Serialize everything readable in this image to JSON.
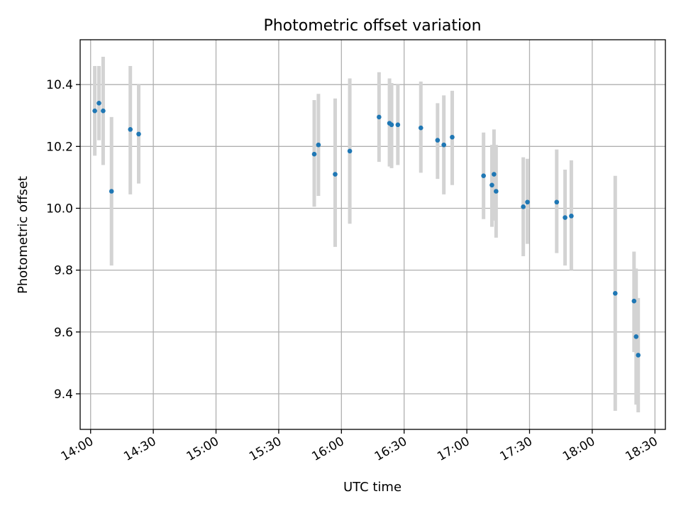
{
  "chart_data": {
    "type": "scatter",
    "title": "Photometric offset variation",
    "xlabel": "UTC time",
    "ylabel": "Photometric offset",
    "x_axis": "time",
    "xlim": [
      "13:55",
      "18:35"
    ],
    "ylim": [
      9.285,
      10.545
    ],
    "x_ticks": [
      "14:00",
      "14:30",
      "15:00",
      "15:30",
      "16:00",
      "16:30",
      "17:00",
      "17:30",
      "18:00",
      "18:30"
    ],
    "y_ticks": [
      9.4,
      9.6,
      9.8,
      10.0,
      10.2,
      10.4
    ],
    "y_tick_labels": [
      "9.4",
      "9.6",
      "9.8",
      "10.0",
      "10.2",
      "10.4"
    ],
    "grid": true,
    "marker_color": "#1f77b4",
    "errorbar_color": "#d3d3d3",
    "points": [
      {
        "x": "14:02",
        "y": 10.315,
        "lo": 10.17,
        "hi": 10.46
      },
      {
        "x": "14:04",
        "y": 10.34,
        "lo": 10.22,
        "hi": 10.46
      },
      {
        "x": "14:06",
        "y": 10.315,
        "lo": 10.14,
        "hi": 10.49
      },
      {
        "x": "14:10",
        "y": 10.055,
        "lo": 9.815,
        "hi": 10.295
      },
      {
        "x": "14:19",
        "y": 10.255,
        "lo": 10.045,
        "hi": 10.46
      },
      {
        "x": "14:23",
        "y": 10.24,
        "lo": 10.08,
        "hi": 10.4
      },
      {
        "x": "15:47",
        "y": 10.175,
        "lo": 10.005,
        "hi": 10.35
      },
      {
        "x": "15:49",
        "y": 10.205,
        "lo": 10.04,
        "hi": 10.37
      },
      {
        "x": "15:57",
        "y": 10.11,
        "lo": 9.875,
        "hi": 10.355
      },
      {
        "x": "16:04",
        "y": 10.185,
        "lo": 9.95,
        "hi": 10.42
      },
      {
        "x": "16:18",
        "y": 10.295,
        "lo": 10.15,
        "hi": 10.44
      },
      {
        "x": "16:23",
        "y": 10.275,
        "lo": 10.135,
        "hi": 10.42
      },
      {
        "x": "16:24",
        "y": 10.27,
        "lo": 10.13,
        "hi": 10.405
      },
      {
        "x": "16:27",
        "y": 10.27,
        "lo": 10.14,
        "hi": 10.4
      },
      {
        "x": "16:38",
        "y": 10.26,
        "lo": 10.115,
        "hi": 10.41
      },
      {
        "x": "16:46",
        "y": 10.22,
        "lo": 10.095,
        "hi": 10.34
      },
      {
        "x": "16:49",
        "y": 10.205,
        "lo": 10.045,
        "hi": 10.365
      },
      {
        "x": "16:53",
        "y": 10.23,
        "lo": 10.075,
        "hi": 10.38
      },
      {
        "x": "17:08",
        "y": 10.105,
        "lo": 9.965,
        "hi": 10.245
      },
      {
        "x": "17:12",
        "y": 10.075,
        "lo": 9.94,
        "hi": 10.205
      },
      {
        "x": "17:13",
        "y": 10.11,
        "lo": 9.96,
        "hi": 10.255
      },
      {
        "x": "17:14",
        "y": 10.055,
        "lo": 9.905,
        "hi": 10.205
      },
      {
        "x": "17:27",
        "y": 10.005,
        "lo": 9.845,
        "hi": 10.165
      },
      {
        "x": "17:29",
        "y": 10.02,
        "lo": 9.885,
        "hi": 10.16
      },
      {
        "x": "17:43",
        "y": 10.02,
        "lo": 9.855,
        "hi": 10.19
      },
      {
        "x": "17:47",
        "y": 9.97,
        "lo": 9.815,
        "hi": 10.125
      },
      {
        "x": "17:50",
        "y": 9.975,
        "lo": 9.8,
        "hi": 10.155
      },
      {
        "x": "18:11",
        "y": 9.725,
        "lo": 9.345,
        "hi": 10.105
      },
      {
        "x": "18:20",
        "y": 9.7,
        "lo": 9.535,
        "hi": 9.86
      },
      {
        "x": "18:21",
        "y": 9.585,
        "lo": 9.365,
        "hi": 9.805
      },
      {
        "x": "18:22",
        "y": 9.525,
        "lo": 9.34,
        "hi": 9.71
      }
    ]
  }
}
